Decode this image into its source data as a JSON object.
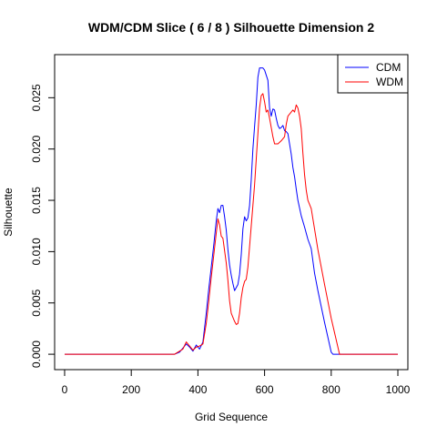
{
  "chart_data": {
    "type": "line",
    "title": "WDM/CDM Slice ( 6 / 8 )  Silhouette Dimension 2",
    "xlabel": "Grid Sequence",
    "ylabel": "Silhouette",
    "xlim": [
      -30,
      1030
    ],
    "ylim": [
      -0.0015,
      0.0292
    ],
    "xticks": [
      0,
      200,
      400,
      600,
      800,
      1000
    ],
    "yticks": [
      0.0,
      0.005,
      0.01,
      0.015,
      0.02,
      0.025
    ],
    "xtick_labels": [
      "0",
      "200",
      "400",
      "600",
      "800",
      "1000"
    ],
    "ytick_labels": [
      "0.000",
      "0.005",
      "0.010",
      "0.015",
      "0.020",
      "0.025"
    ],
    "grid": false,
    "legend_position": "top-right",
    "series": [
      {
        "name": "CDM",
        "color": "#0000ff",
        "points": [
          [
            0,
            0
          ],
          [
            330,
            0
          ],
          [
            345,
            0.0002
          ],
          [
            355,
            0.0006
          ],
          [
            365,
            0.001
          ],
          [
            375,
            0.0007
          ],
          [
            385,
            0.0003
          ],
          [
            395,
            0.0009
          ],
          [
            405,
            0.0005
          ],
          [
            415,
            0.0012
          ],
          [
            425,
            0.004
          ],
          [
            432,
            0.0062
          ],
          [
            440,
            0.0085
          ],
          [
            448,
            0.0108
          ],
          [
            455,
            0.013
          ],
          [
            460,
            0.0142
          ],
          [
            465,
            0.0138
          ],
          [
            470,
            0.0145
          ],
          [
            475,
            0.0145
          ],
          [
            480,
            0.0134
          ],
          [
            485,
            0.0121
          ],
          [
            490,
            0.0102
          ],
          [
            495,
            0.0087
          ],
          [
            500,
            0.0077
          ],
          [
            505,
            0.0069
          ],
          [
            510,
            0.0062
          ],
          [
            515,
            0.0065
          ],
          [
            520,
            0.0068
          ],
          [
            525,
            0.0078
          ],
          [
            530,
            0.0097
          ],
          [
            535,
            0.0122
          ],
          [
            540,
            0.0134
          ],
          [
            545,
            0.013
          ],
          [
            550,
            0.0133
          ],
          [
            555,
            0.0145
          ],
          [
            560,
            0.017
          ],
          [
            565,
            0.02
          ],
          [
            570,
            0.0222
          ],
          [
            575,
            0.0243
          ],
          [
            580,
            0.027
          ],
          [
            585,
            0.0279
          ],
          [
            590,
            0.0279
          ],
          [
            595,
            0.0279
          ],
          [
            600,
            0.0277
          ],
          [
            605,
            0.0272
          ],
          [
            610,
            0.0267
          ],
          [
            615,
            0.024
          ],
          [
            620,
            0.0232
          ],
          [
            625,
            0.0239
          ],
          [
            630,
            0.0238
          ],
          [
            635,
            0.023
          ],
          [
            640,
            0.0223
          ],
          [
            645,
            0.022
          ],
          [
            650,
            0.0221
          ],
          [
            655,
            0.0223
          ],
          [
            660,
            0.0218
          ],
          [
            665,
            0.0217
          ],
          [
            670,
            0.0215
          ],
          [
            675,
            0.0205
          ],
          [
            680,
            0.0195
          ],
          [
            685,
            0.0182
          ],
          [
            690,
            0.0173
          ],
          [
            695,
            0.0161
          ],
          [
            700,
            0.015
          ],
          [
            710,
            0.0135
          ],
          [
            720,
            0.0124
          ],
          [
            730,
            0.0112
          ],
          [
            740,
            0.0103
          ],
          [
            745,
            0.0091
          ],
          [
            750,
            0.0079
          ],
          [
            760,
            0.0062
          ],
          [
            780,
            0.0031
          ],
          [
            800,
            0.0002
          ],
          [
            805,
            0
          ],
          [
            1000,
            0
          ]
        ]
      },
      {
        "name": "WDM",
        "color": "#ff0000",
        "points": [
          [
            0,
            0
          ],
          [
            330,
            0
          ],
          [
            345,
            0.0003
          ],
          [
            355,
            0.0005
          ],
          [
            365,
            0.0012
          ],
          [
            375,
            0.0008
          ],
          [
            385,
            0.0004
          ],
          [
            395,
            0.0007
          ],
          [
            405,
            0.0008
          ],
          [
            415,
            0.001
          ],
          [
            425,
            0.003
          ],
          [
            432,
            0.005
          ],
          [
            440,
            0.0075
          ],
          [
            448,
            0.0098
          ],
          [
            455,
            0.0118
          ],
          [
            460,
            0.0132
          ],
          [
            465,
            0.0126
          ],
          [
            470,
            0.0115
          ],
          [
            475,
            0.0113
          ],
          [
            480,
            0.0101
          ],
          [
            485,
            0.0089
          ],
          [
            490,
            0.0072
          ],
          [
            495,
            0.0052
          ],
          [
            500,
            0.004
          ],
          [
            505,
            0.0036
          ],
          [
            510,
            0.0032
          ],
          [
            515,
            0.0029
          ],
          [
            520,
            0.003
          ],
          [
            525,
            0.004
          ],
          [
            530,
            0.0055
          ],
          [
            535,
            0.0065
          ],
          [
            540,
            0.0071
          ],
          [
            545,
            0.0073
          ],
          [
            550,
            0.0085
          ],
          [
            555,
            0.0105
          ],
          [
            560,
            0.0125
          ],
          [
            565,
            0.0145
          ],
          [
            570,
            0.0165
          ],
          [
            575,
            0.019
          ],
          [
            580,
            0.0215
          ],
          [
            585,
            0.024
          ],
          [
            590,
            0.0252
          ],
          [
            595,
            0.0254
          ],
          [
            600,
            0.0246
          ],
          [
            605,
            0.0236
          ],
          [
            610,
            0.0238
          ],
          [
            615,
            0.023
          ],
          [
            620,
            0.0221
          ],
          [
            625,
            0.0212
          ],
          [
            630,
            0.0205
          ],
          [
            640,
            0.0205
          ],
          [
            650,
            0.0208
          ],
          [
            660,
            0.0212
          ],
          [
            665,
            0.0224
          ],
          [
            670,
            0.0232
          ],
          [
            675,
            0.0234
          ],
          [
            680,
            0.0236
          ],
          [
            685,
            0.0238
          ],
          [
            690,
            0.0236
          ],
          [
            695,
            0.0243
          ],
          [
            700,
            0.024
          ],
          [
            705,
            0.0232
          ],
          [
            710,
            0.022
          ],
          [
            715,
            0.0196
          ],
          [
            720,
            0.0175
          ],
          [
            725,
            0.016
          ],
          [
            730,
            0.015
          ],
          [
            740,
            0.0142
          ],
          [
            750,
            0.0122
          ],
          [
            760,
            0.0102
          ],
          [
            780,
            0.0068
          ],
          [
            800,
            0.0035
          ],
          [
            820,
            0.0007
          ],
          [
            825,
            0
          ],
          [
            1000,
            0
          ]
        ]
      }
    ]
  }
}
